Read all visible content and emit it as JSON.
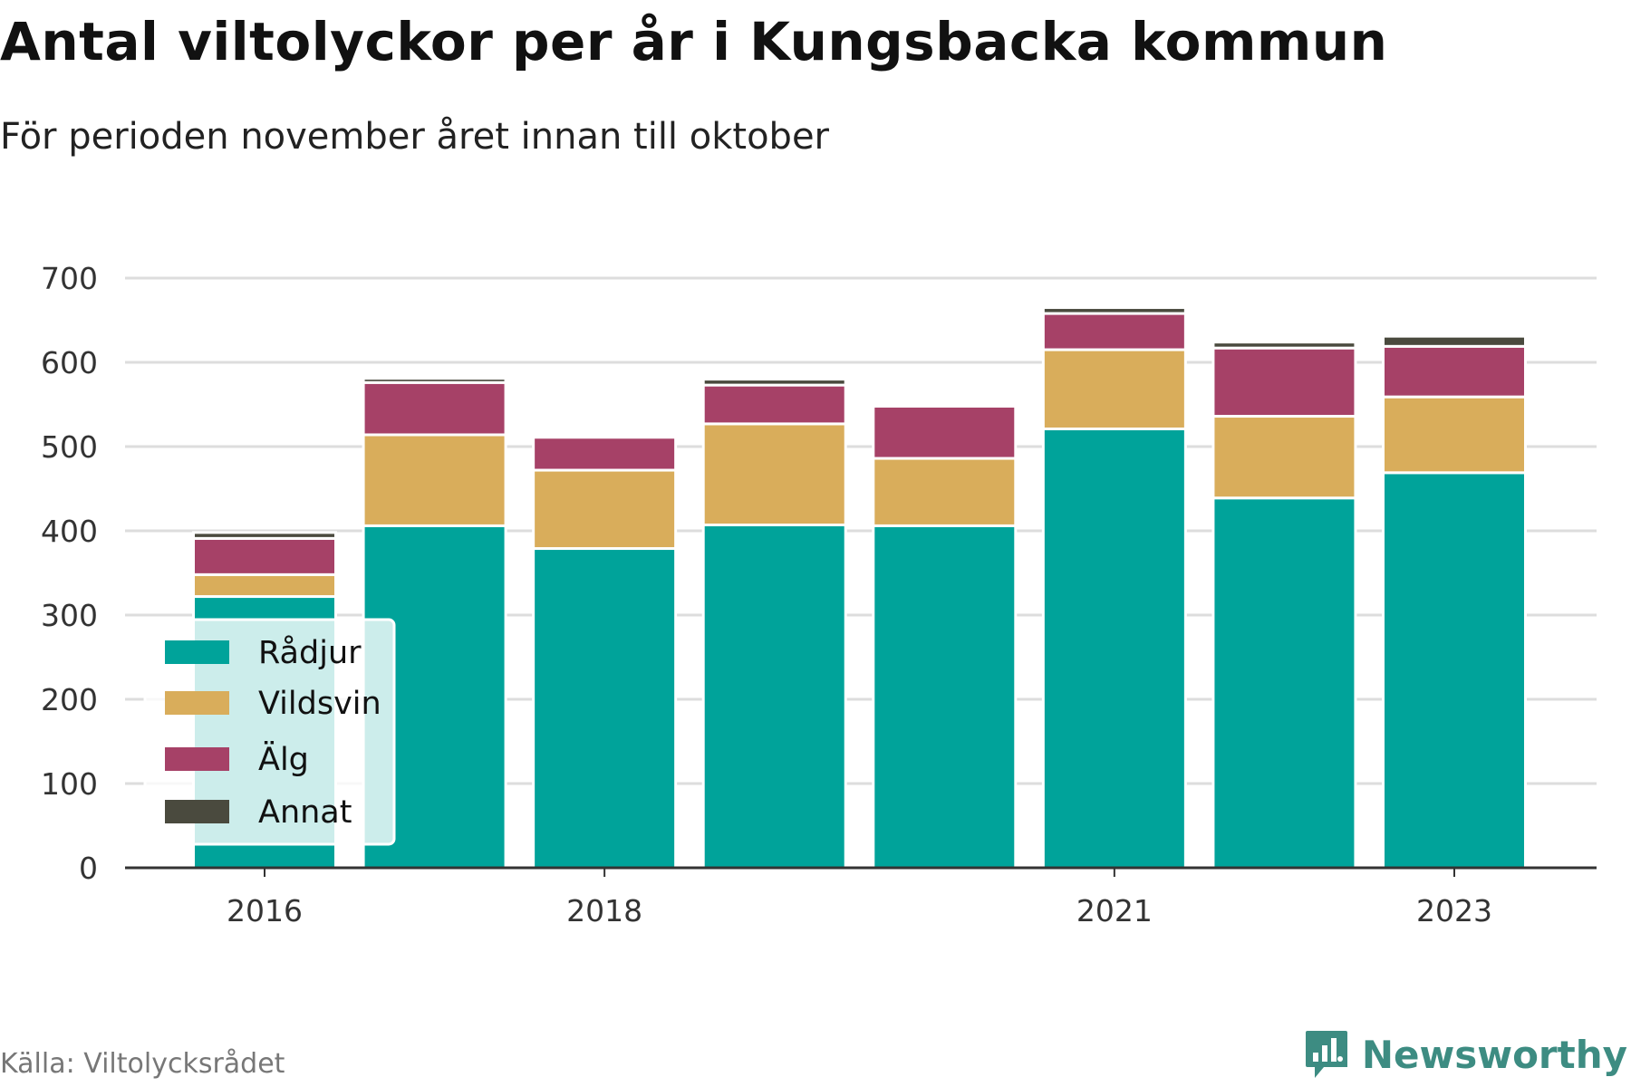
{
  "header": {
    "title": "Antal viltolyckor per år i Kungsbacka kommun",
    "subtitle": "För perioden november året innan till oktober"
  },
  "footer": {
    "source": "Källa: Viltolycksrådet",
    "brand": "Newsworthy"
  },
  "colors": {
    "Rådjur": "#00a39a",
    "Vildsvin": "#d9ad5b",
    "Älg": "#a64167",
    "Annat": "#4a4a3e",
    "grid": "#dddddd",
    "axis": "#333333",
    "brand": "#3d8c82"
  },
  "chart_data": {
    "type": "bar",
    "stacked": true,
    "title": "Antal viltolyckor per år i Kungsbacka kommun",
    "subtitle": "För perioden november året innan till oktober",
    "x": [
      2016,
      2017,
      2018,
      2019,
      2020,
      2021,
      2022,
      2023
    ],
    "x_tick_labels": [
      "2016",
      "2018",
      "2021",
      "2023"
    ],
    "x_tick_values": [
      2016,
      2018,
      2021,
      2023
    ],
    "ylim": [
      0,
      700
    ],
    "y_ticks": [
      0,
      100,
      200,
      300,
      400,
      500,
      600,
      700
    ],
    "grid": true,
    "legend_position": "bottom-left",
    "series": [
      {
        "name": "Rådjur",
        "values": [
          322,
          406,
          379,
          407,
          406,
          521,
          439,
          469
        ]
      },
      {
        "name": "Vildsvin",
        "values": [
          26,
          108,
          93,
          120,
          80,
          94,
          97,
          90
        ]
      },
      {
        "name": "Älg",
        "values": [
          43,
          62,
          39,
          46,
          62,
          43,
          81,
          60
        ]
      },
      {
        "name": "Annat",
        "values": [
          7,
          5,
          0,
          7,
          3,
          7,
          7,
          12
        ]
      }
    ]
  }
}
